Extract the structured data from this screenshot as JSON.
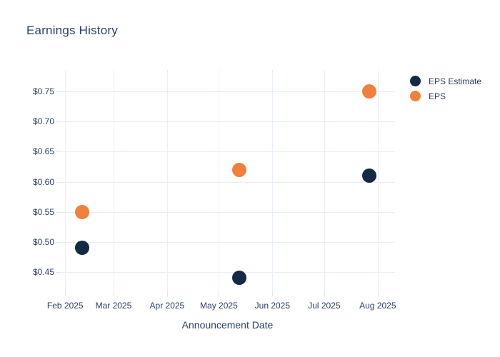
{
  "chart_data": {
    "type": "scatter",
    "title": "Earnings History",
    "xlabel": "Announcement Date",
    "ylabel": "",
    "legend_position": "top-right",
    "grid": true,
    "background_color": "#ffffff",
    "text_color": "#2a3f5f",
    "grid_color": "#e9eef6",
    "tick_color": "#dbe3ef",
    "x_range": [
      "2025-01-29",
      "2025-08-11"
    ],
    "y_range": [
      0.4156,
      0.7856
    ],
    "x_ticks": [
      {
        "date": "2025-02-01",
        "label": "Feb 2025"
      },
      {
        "date": "2025-03-01",
        "label": "Mar 2025"
      },
      {
        "date": "2025-04-01",
        "label": "Apr 2025"
      },
      {
        "date": "2025-05-01",
        "label": "May 2025"
      },
      {
        "date": "2025-06-01",
        "label": "Jun 2025"
      },
      {
        "date": "2025-07-01",
        "label": "Jul 2025"
      },
      {
        "date": "2025-08-01",
        "label": "Aug 2025"
      }
    ],
    "y_ticks": [
      {
        "value": 0.45,
        "label": "$0.45"
      },
      {
        "value": 0.5,
        "label": "$0.50"
      },
      {
        "value": 0.55,
        "label": "$0.55"
      },
      {
        "value": 0.6,
        "label": "$0.60"
      },
      {
        "value": 0.65,
        "label": "$0.65"
      },
      {
        "value": 0.7,
        "label": "$0.70"
      },
      {
        "value": 0.75,
        "label": "$0.75"
      }
    ],
    "series": [
      {
        "name": "EPS Estimate",
        "color": "#132944",
        "marker_size": 20,
        "points": [
          {
            "x": "2025-02-11",
            "y": 0.49
          },
          {
            "x": "2025-05-13",
            "y": 0.44
          },
          {
            "x": "2025-07-27",
            "y": 0.61
          }
        ]
      },
      {
        "name": "EPS",
        "color": "#f0803e",
        "marker_size": 20,
        "points": [
          {
            "x": "2025-02-11",
            "y": 0.55
          },
          {
            "x": "2025-05-13",
            "y": 0.62
          },
          {
            "x": "2025-07-27",
            "y": 0.75
          }
        ]
      }
    ]
  }
}
